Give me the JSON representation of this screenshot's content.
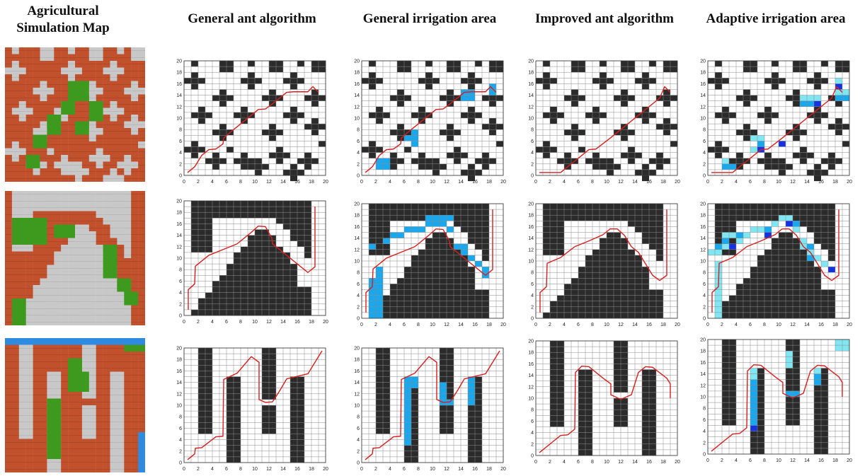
{
  "headers": {
    "map_title_line1": "Agricultural",
    "map_title_line2": "Simulation Map",
    "general_ant": "General ant algorithm",
    "general_irrigation": "General irrigation area",
    "improved_ant": "Improved ant algorithm",
    "adaptive_irrigation": "Adaptive irrigation area"
  },
  "colors": {
    "soil": "#c1502c",
    "stone": "#c8c8c8",
    "crop": "#3d9a1e",
    "water": "#2f8be0",
    "obstacle": "#2b2b2b",
    "grid_line": "#8a8a8a",
    "path": "#d81e1e",
    "irrigation_light": "#19a8ee",
    "irrigation_pale": "#7fe6f2",
    "irrigation_deep": "#1432e0"
  },
  "grid": {
    "x_ticks": [
      "0",
      "2",
      "4",
      "6",
      "8",
      "10",
      "12",
      "14",
      "16",
      "18",
      "20"
    ],
    "y_ticks": [
      "0",
      "2",
      "4",
      "6",
      "8",
      "10",
      "12",
      "14",
      "16",
      "18",
      "20"
    ]
  }
}
